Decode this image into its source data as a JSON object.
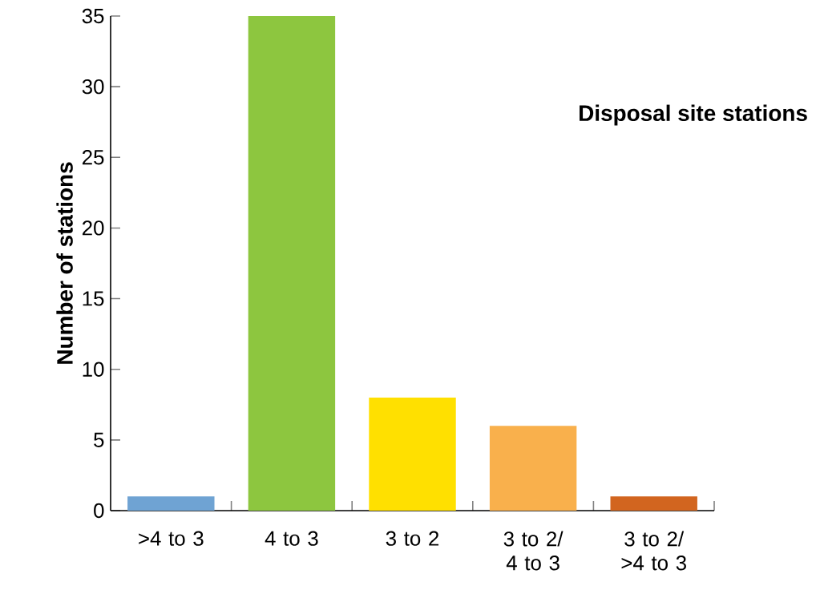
{
  "chart_data": {
    "type": "bar",
    "title": "Disposal site stations",
    "ylabel": "Number of stations",
    "categories": [
      ">4 to 3",
      "4 to 3",
      "3 to 2",
      "3 to 2/ 4 to 3",
      "3 to 2/ >4 to 3"
    ],
    "values": [
      1,
      35,
      8,
      6,
      1
    ],
    "colors": [
      "#6fa3d3",
      "#8dc63f",
      "#ffe000",
      "#f9b04c",
      "#d2651f"
    ],
    "ylim": [
      0,
      35
    ],
    "yticks": [
      0,
      5,
      10,
      15,
      20,
      25,
      30,
      35
    ],
    "grid": false
  }
}
